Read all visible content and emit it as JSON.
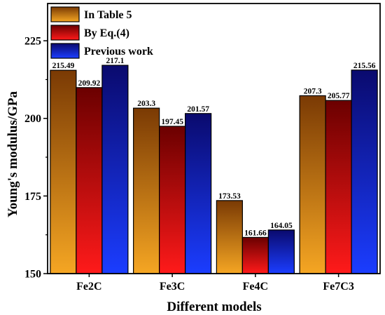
{
  "chart_data": {
    "type": "bar",
    "title": "",
    "xlabel": "Different models",
    "ylabel": "Young's modulus/GPa",
    "categories": [
      "Fe2C",
      "Fe3C",
      "Fe4C",
      "Fe7C3"
    ],
    "ylim": [
      150,
      237
    ],
    "yticks": [
      150,
      175,
      200,
      225
    ],
    "grid": false,
    "legend_position": "top-left",
    "series": [
      {
        "name": "In Table 5",
        "values": [
          215.49,
          203.3,
          173.53,
          207.3
        ],
        "labels": [
          "215.49",
          "203.3",
          "173.53",
          "207.3"
        ],
        "color_light": "#f5a623",
        "color_dark": "#7a3a04"
      },
      {
        "name": "By Eq.(4)",
        "values": [
          209.92,
          197.45,
          161.66,
          205.77
        ],
        "labels": [
          "209.92",
          "197.45",
          "161.66",
          "205.77"
        ],
        "color_light": "#ff1a1a",
        "color_dark": "#6b0000"
      },
      {
        "name": "Previous work",
        "values": [
          217.1,
          201.57,
          164.05,
          215.56
        ],
        "labels": [
          "217.1",
          "201.57",
          "164.05",
          "215.56"
        ],
        "color_light": "#1b3dff",
        "color_dark": "#0a0a6e"
      }
    ]
  }
}
